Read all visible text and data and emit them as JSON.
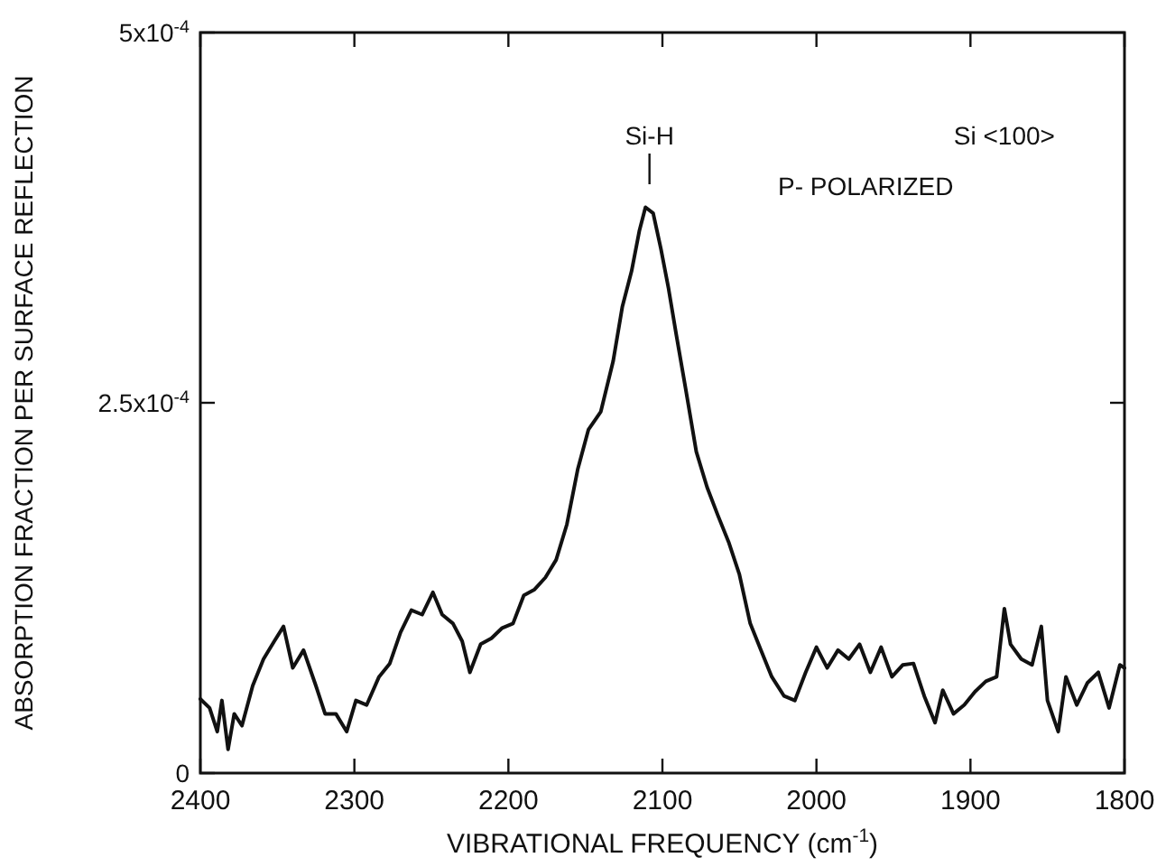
{
  "chart_data": {
    "type": "line",
    "xlabel": "VIBRATIONAL FREQUENCY (cm$^{-1}$)",
    "ylabel": "ABSORPTION FRACTION PER SURFACE REFLECTION",
    "xlim": [
      2400,
      1800
    ],
    "xticks": [
      2400,
      2300,
      2200,
      2100,
      2000,
      1900,
      1800
    ],
    "ylim": [
      0,
      0.0005
    ],
    "yticks": [
      0,
      {
        "value": 0.00025,
        "label": "2.5x10$^{-4}$"
      },
      {
        "value": 0.0005,
        "label": "5x10$^{-4}$"
      }
    ],
    "grid": false,
    "marker": "none",
    "line_style": "solid",
    "annotations": [
      "Si-H",
      "Si <100>",
      "P- POLARIZED"
    ],
    "series": [
      {
        "color": "#111111",
        "x": [
          2400,
          2394,
          2389,
          2386,
          2382,
          2378,
          2373,
          2366,
          2359,
          2352,
          2346,
          2340,
          2333,
          2325,
          2319,
          2312,
          2305,
          2299,
          2292,
          2284,
          2277,
          2270,
          2263,
          2256,
          2249,
          2243,
          2236,
          2230,
          2225,
          2218,
          2211,
          2204,
          2197,
          2190,
          2183,
          2176,
          2169,
          2162,
          2155,
          2148,
          2140,
          2132,
          2126,
          2120,
          2115,
          2111,
          2106,
          2101,
          2096,
          2091,
          2085,
          2078,
          2071,
          2064,
          2057,
          2050,
          2043,
          2036,
          2029,
          2021,
          2014,
          2007,
          2000,
          1993,
          1986,
          1979,
          1972,
          1965,
          1958,
          1951,
          1944,
          1937,
          1930,
          1923,
          1918,
          1911,
          1904,
          1897,
          1890,
          1883,
          1878,
          1874,
          1867,
          1860,
          1854,
          1850,
          1843,
          1838,
          1831,
          1824,
          1817,
          1810,
          1803,
          1800
        ],
        "values": [
          5e-05,
          4.4e-05,
          2.8e-05,
          4.9e-05,
          1.6e-05,
          4e-05,
          3.2e-05,
          5.9e-05,
          7.7e-05,
          8.9e-05,
          9.9e-05,
          7.1e-05,
          8.3e-05,
          5.9e-05,
          4e-05,
          4e-05,
          2.8e-05,
          4.9e-05,
          4.6e-05,
          6.5e-05,
          7.4e-05,
          9.5e-05,
          0.00011,
          0.000107,
          0.000122,
          0.000107,
          0.000101,
          8.9e-05,
          6.8e-05,
          8.7e-05,
          9.1e-05,
          9.8e-05,
          0.000101,
          0.00012,
          0.000124,
          0.000132,
          0.000144,
          0.000168,
          0.000205,
          0.000232,
          0.000244,
          0.000278,
          0.000315,
          0.000339,
          0.000366,
          0.000382,
          0.000378,
          0.000354,
          0.000327,
          0.000296,
          0.00026,
          0.000217,
          0.000193,
          0.000174,
          0.000156,
          0.000134,
          0.000101,
          8.3e-05,
          6.5e-05,
          5.2e-05,
          4.9e-05,
          6.8e-05,
          8.5e-05,
          7.1e-05,
          8.3e-05,
          7.7e-05,
          8.7e-05,
          6.8e-05,
          8.5e-05,
          6.5e-05,
          7.3e-05,
          7.4e-05,
          5.2e-05,
          3.4e-05,
          5.6e-05,
          4e-05,
          4.6e-05,
          5.5e-05,
          6.2e-05,
          6.5e-05,
          0.000111,
          8.7e-05,
          7.7e-05,
          7.3e-05,
          9.9e-05,
          4.9e-05,
          2.8e-05,
          6.5e-05,
          4.6e-05,
          6.1e-05,
          6.8e-05,
          4.4e-05,
          7.3e-05,
          7.1e-05
        ]
      }
    ]
  }
}
